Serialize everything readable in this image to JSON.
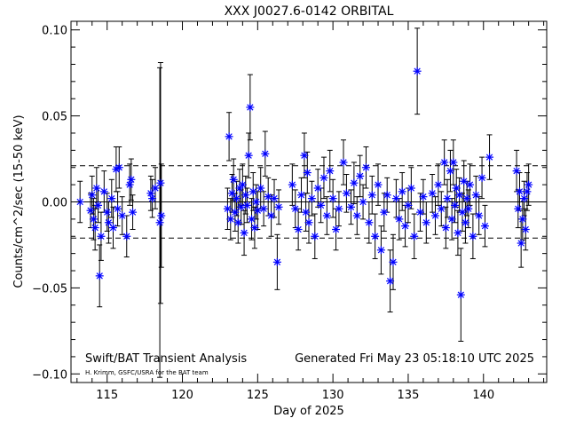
{
  "chart_data": {
    "type": "scatter",
    "title": "XXX J0027.6-0142 ORBITAL",
    "xlabel": "Day of 2025",
    "ylabel": "Counts/cm^2/sec (15-50 keV)",
    "xlim": [
      112.6,
      144.2
    ],
    "ylim": [
      -0.105,
      0.105
    ],
    "xticks": [
      115,
      120,
      125,
      130,
      135,
      140
    ],
    "xtick_labels": [
      "115",
      "120",
      "125",
      "130",
      "135",
      "140"
    ],
    "yticks": [
      -0.1,
      -0.05,
      0.0,
      0.05,
      0.1
    ],
    "ytick_labels": [
      "−0.10",
      "−0.05",
      "0.00",
      "0.05",
      "0.10"
    ],
    "reference_lines": {
      "zero": 0.0,
      "upper_dashed": 0.021,
      "lower_dashed": -0.021
    },
    "footer_left": "Swift/BAT Transient Analysis",
    "footer_credit": "H. Krimm, GSFC/USRA for the BAT team",
    "footer_right": "Generated Fri May 23 05:18:10 UTC 2025",
    "marker_color": "#0000ff",
    "series": [
      {
        "points": [
          {
            "x": 113.2,
            "y": 0.0,
            "err": 0.012
          },
          {
            "x": 113.9,
            "y": -0.005,
            "err": 0.01
          },
          {
            "x": 114.0,
            "y": 0.004,
            "err": 0.011
          },
          {
            "x": 114.1,
            "y": -0.01,
            "err": 0.012
          },
          {
            "x": 114.2,
            "y": -0.015,
            "err": 0.013
          },
          {
            "x": 114.3,
            "y": 0.008,
            "err": 0.012
          },
          {
            "x": 114.4,
            "y": -0.002,
            "err": 0.01
          },
          {
            "x": 114.5,
            "y": -0.043,
            "err": 0.018
          },
          {
            "x": 114.6,
            "y": -0.02,
            "err": 0.014
          },
          {
            "x": 114.8,
            "y": 0.006,
            "err": 0.012
          },
          {
            "x": 115.0,
            "y": -0.006,
            "err": 0.011
          },
          {
            "x": 115.1,
            "y": -0.012,
            "err": 0.012
          },
          {
            "x": 115.3,
            "y": 0.002,
            "err": 0.011
          },
          {
            "x": 115.4,
            "y": -0.015,
            "err": 0.012
          },
          {
            "x": 115.6,
            "y": 0.019,
            "err": 0.013
          },
          {
            "x": 115.7,
            "y": -0.004,
            "err": 0.01
          },
          {
            "x": 115.8,
            "y": 0.02,
            "err": 0.012
          },
          {
            "x": 116.0,
            "y": -0.008,
            "err": 0.011
          },
          {
            "x": 116.3,
            "y": -0.02,
            "err": 0.012
          },
          {
            "x": 116.5,
            "y": 0.01,
            "err": 0.012
          },
          {
            "x": 116.6,
            "y": 0.013,
            "err": 0.012
          },
          {
            "x": 116.7,
            "y": -0.006,
            "err": 0.01
          },
          {
            "x": 117.9,
            "y": 0.005,
            "err": 0.01
          },
          {
            "x": 118.0,
            "y": 0.002,
            "err": 0.011
          },
          {
            "x": 118.2,
            "y": 0.008,
            "err": 0.012
          },
          {
            "x": 118.5,
            "y": -0.012,
            "err": 0.09
          },
          {
            "x": 118.55,
            "y": 0.011,
            "err": 0.07
          },
          {
            "x": 118.6,
            "y": -0.008,
            "err": 0.03
          },
          {
            "x": 123.0,
            "y": -0.004,
            "err": 0.012
          },
          {
            "x": 123.1,
            "y": 0.038,
            "err": 0.014
          },
          {
            "x": 123.2,
            "y": -0.01,
            "err": 0.012
          },
          {
            "x": 123.3,
            "y": 0.005,
            "err": 0.011
          },
          {
            "x": 123.4,
            "y": 0.013,
            "err": 0.012
          },
          {
            "x": 123.5,
            "y": -0.006,
            "err": 0.011
          },
          {
            "x": 123.6,
            "y": 0.002,
            "err": 0.01
          },
          {
            "x": 123.7,
            "y": -0.012,
            "err": 0.012
          },
          {
            "x": 123.8,
            "y": 0.008,
            "err": 0.011
          },
          {
            "x": 123.9,
            "y": -0.003,
            "err": 0.01
          },
          {
            "x": 124.0,
            "y": 0.01,
            "err": 0.012
          },
          {
            "x": 124.1,
            "y": -0.018,
            "err": 0.013
          },
          {
            "x": 124.2,
            "y": 0.004,
            "err": 0.011
          },
          {
            "x": 124.3,
            "y": -0.002,
            "err": 0.01
          },
          {
            "x": 124.4,
            "y": 0.027,
            "err": 0.013
          },
          {
            "x": 124.5,
            "y": 0.055,
            "err": 0.019
          },
          {
            "x": 124.6,
            "y": -0.01,
            "err": 0.012
          },
          {
            "x": 124.7,
            "y": 0.006,
            "err": 0.011
          },
          {
            "x": 124.8,
            "y": -0.015,
            "err": 0.012
          },
          {
            "x": 124.9,
            "y": 0.0,
            "err": 0.01
          },
          {
            "x": 125.0,
            "y": -0.005,
            "err": 0.011
          },
          {
            "x": 125.2,
            "y": 0.008,
            "err": 0.012
          },
          {
            "x": 125.4,
            "y": -0.004,
            "err": 0.01
          },
          {
            "x": 125.5,
            "y": 0.028,
            "err": 0.013
          },
          {
            "x": 125.7,
            "y": 0.003,
            "err": 0.011
          },
          {
            "x": 125.9,
            "y": -0.008,
            "err": 0.012
          },
          {
            "x": 126.1,
            "y": 0.002,
            "err": 0.011
          },
          {
            "x": 126.3,
            "y": -0.035,
            "err": 0.016
          },
          {
            "x": 126.4,
            "y": -0.003,
            "err": 0.01
          },
          {
            "x": 127.3,
            "y": 0.01,
            "err": 0.012
          },
          {
            "x": 127.5,
            "y": -0.004,
            "err": 0.011
          },
          {
            "x": 127.7,
            "y": -0.016,
            "err": 0.012
          },
          {
            "x": 127.9,
            "y": 0.004,
            "err": 0.01
          },
          {
            "x": 128.1,
            "y": 0.027,
            "err": 0.013
          },
          {
            "x": 128.2,
            "y": -0.006,
            "err": 0.011
          },
          {
            "x": 128.3,
            "y": 0.017,
            "err": 0.012
          },
          {
            "x": 128.4,
            "y": -0.012,
            "err": 0.012
          },
          {
            "x": 128.6,
            "y": 0.002,
            "err": 0.01
          },
          {
            "x": 128.8,
            "y": -0.02,
            "err": 0.013
          },
          {
            "x": 129.0,
            "y": 0.008,
            "err": 0.011
          },
          {
            "x": 129.2,
            "y": -0.002,
            "err": 0.01
          },
          {
            "x": 129.4,
            "y": 0.014,
            "err": 0.012
          },
          {
            "x": 129.6,
            "y": -0.008,
            "err": 0.011
          },
          {
            "x": 129.8,
            "y": 0.018,
            "err": 0.012
          },
          {
            "x": 130.0,
            "y": 0.002,
            "err": 0.011
          },
          {
            "x": 130.2,
            "y": -0.016,
            "err": 0.012
          },
          {
            "x": 130.4,
            "y": -0.004,
            "err": 0.01
          },
          {
            "x": 130.7,
            "y": 0.023,
            "err": 0.013
          },
          {
            "x": 130.9,
            "y": 0.005,
            "err": 0.011
          },
          {
            "x": 131.2,
            "y": -0.003,
            "err": 0.01
          },
          {
            "x": 131.4,
            "y": 0.011,
            "err": 0.012
          },
          {
            "x": 131.6,
            "y": -0.008,
            "err": 0.011
          },
          {
            "x": 131.8,
            "y": 0.015,
            "err": 0.012
          },
          {
            "x": 132.0,
            "y": 0.0,
            "err": 0.01
          },
          {
            "x": 132.2,
            "y": 0.02,
            "err": 0.012
          },
          {
            "x": 132.4,
            "y": -0.012,
            "err": 0.012
          },
          {
            "x": 132.6,
            "y": 0.004,
            "err": 0.011
          },
          {
            "x": 132.8,
            "y": -0.02,
            "err": 0.013
          },
          {
            "x": 133.0,
            "y": 0.01,
            "err": 0.012
          },
          {
            "x": 133.2,
            "y": -0.028,
            "err": 0.014
          },
          {
            "x": 133.4,
            "y": -0.006,
            "err": 0.011
          },
          {
            "x": 133.6,
            "y": 0.004,
            "err": 0.01
          },
          {
            "x": 133.8,
            "y": -0.046,
            "err": 0.018
          },
          {
            "x": 134.0,
            "y": -0.035,
            "err": 0.016
          },
          {
            "x": 134.2,
            "y": 0.002,
            "err": 0.011
          },
          {
            "x": 134.4,
            "y": -0.01,
            "err": 0.012
          },
          {
            "x": 134.6,
            "y": 0.006,
            "err": 0.011
          },
          {
            "x": 134.8,
            "y": -0.014,
            "err": 0.012
          },
          {
            "x": 135.0,
            "y": -0.002,
            "err": 0.01
          },
          {
            "x": 135.2,
            "y": 0.008,
            "err": 0.012
          },
          {
            "x": 135.4,
            "y": -0.02,
            "err": 0.013
          },
          {
            "x": 135.6,
            "y": 0.076,
            "err": 0.025
          },
          {
            "x": 135.8,
            "y": -0.006,
            "err": 0.011
          },
          {
            "x": 136.0,
            "y": 0.003,
            "err": 0.01
          },
          {
            "x": 136.2,
            "y": -0.012,
            "err": 0.012
          },
          {
            "x": 136.6,
            "y": 0.005,
            "err": 0.011
          },
          {
            "x": 136.8,
            "y": -0.008,
            "err": 0.011
          },
          {
            "x": 137.0,
            "y": 0.01,
            "err": 0.012
          },
          {
            "x": 137.2,
            "y": -0.004,
            "err": 0.01
          },
          {
            "x": 137.4,
            "y": 0.023,
            "err": 0.013
          },
          {
            "x": 137.5,
            "y": -0.015,
            "err": 0.012
          },
          {
            "x": 137.6,
            "y": 0.002,
            "err": 0.011
          },
          {
            "x": 137.8,
            "y": 0.018,
            "err": 0.012
          },
          {
            "x": 137.9,
            "y": -0.01,
            "err": 0.012
          },
          {
            "x": 138.0,
            "y": 0.023,
            "err": 0.013
          },
          {
            "x": 138.1,
            "y": -0.002,
            "err": 0.01
          },
          {
            "x": 138.2,
            "y": 0.008,
            "err": 0.011
          },
          {
            "x": 138.3,
            "y": -0.018,
            "err": 0.013
          },
          {
            "x": 138.4,
            "y": 0.004,
            "err": 0.01
          },
          {
            "x": 138.5,
            "y": -0.054,
            "err": 0.027
          },
          {
            "x": 138.6,
            "y": -0.006,
            "err": 0.011
          },
          {
            "x": 138.7,
            "y": 0.012,
            "err": 0.012
          },
          {
            "x": 138.8,
            "y": -0.012,
            "err": 0.012
          },
          {
            "x": 138.9,
            "y": 0.002,
            "err": 0.01
          },
          {
            "x": 139.0,
            "y": -0.004,
            "err": 0.011
          },
          {
            "x": 139.1,
            "y": 0.01,
            "err": 0.012
          },
          {
            "x": 139.3,
            "y": -0.02,
            "err": 0.013
          },
          {
            "x": 139.5,
            "y": 0.004,
            "err": 0.011
          },
          {
            "x": 139.7,
            "y": -0.008,
            "err": 0.011
          },
          {
            "x": 139.9,
            "y": 0.014,
            "err": 0.012
          },
          {
            "x": 140.1,
            "y": -0.014,
            "err": 0.012
          },
          {
            "x": 140.4,
            "y": 0.026,
            "err": 0.013
          },
          {
            "x": 142.2,
            "y": 0.018,
            "err": 0.012
          },
          {
            "x": 142.3,
            "y": -0.004,
            "err": 0.011
          },
          {
            "x": 142.4,
            "y": 0.006,
            "err": 0.011
          },
          {
            "x": 142.5,
            "y": -0.024,
            "err": 0.014
          },
          {
            "x": 142.6,
            "y": -0.01,
            "err": 0.012
          },
          {
            "x": 142.7,
            "y": 0.002,
            "err": 0.01
          },
          {
            "x": 142.8,
            "y": -0.016,
            "err": 0.012
          },
          {
            "x": 142.9,
            "y": 0.006,
            "err": 0.011
          },
          {
            "x": 143.0,
            "y": 0.01,
            "err": 0.012
          }
        ]
      }
    ]
  }
}
